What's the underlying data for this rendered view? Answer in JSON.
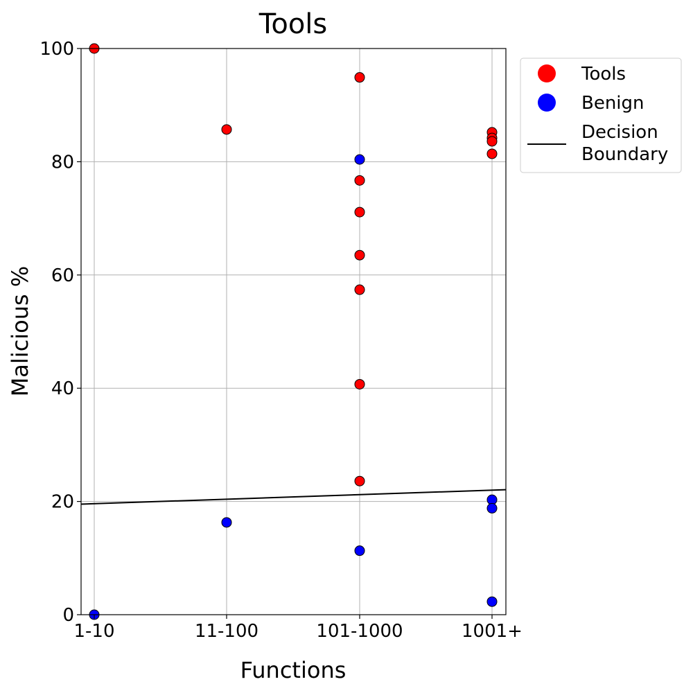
{
  "chart_data": {
    "type": "scatter",
    "title": "Tools",
    "xlabel": "Functions",
    "ylabel": "Malicious %",
    "x_categories": [
      "1-10",
      "11-100",
      "101-1000",
      "1001+"
    ],
    "y_ticks": [
      0,
      20,
      40,
      60,
      80,
      100
    ],
    "ylim": [
      0,
      100
    ],
    "grid": true,
    "legend_placement": "outside right, top",
    "series": [
      {
        "name": "Tools",
        "color": "#ff0000",
        "points": [
          {
            "x": "1-10",
            "y": 100
          },
          {
            "x": "11-100",
            "y": 85.7
          },
          {
            "x": "101-1000",
            "y": 94.9
          },
          {
            "x": "101-1000",
            "y": 76.7
          },
          {
            "x": "101-1000",
            "y": 71.1
          },
          {
            "x": "101-1000",
            "y": 63.5
          },
          {
            "x": "101-1000",
            "y": 57.4
          },
          {
            "x": "101-1000",
            "y": 40.7
          },
          {
            "x": "101-1000",
            "y": 23.6
          },
          {
            "x": "1001+",
            "y": 85.2
          },
          {
            "x": "1001+",
            "y": 84.2
          },
          {
            "x": "1001+",
            "y": 83.6
          },
          {
            "x": "1001+",
            "y": 81.4
          }
        ]
      },
      {
        "name": "Benign",
        "color": "#0000ff",
        "points": [
          {
            "x": "1-10",
            "y": 0
          },
          {
            "x": "11-100",
            "y": 16.3
          },
          {
            "x": "101-1000",
            "y": 80.4
          },
          {
            "x": "101-1000",
            "y": 11.3
          },
          {
            "x": "1001+",
            "y": 20.3
          },
          {
            "x": "1001+",
            "y": 18.8
          },
          {
            "x": "1001+",
            "y": 2.3
          }
        ]
      }
    ],
    "decision_boundary": {
      "name": "Decision Boundary",
      "legend_lines": [
        "Decision",
        "Boundary"
      ],
      "color": "#000000",
      "start": {
        "x": "1-10",
        "y": 19.6
      },
      "end": {
        "x": "1001+",
        "y": 22.0
      }
    }
  }
}
